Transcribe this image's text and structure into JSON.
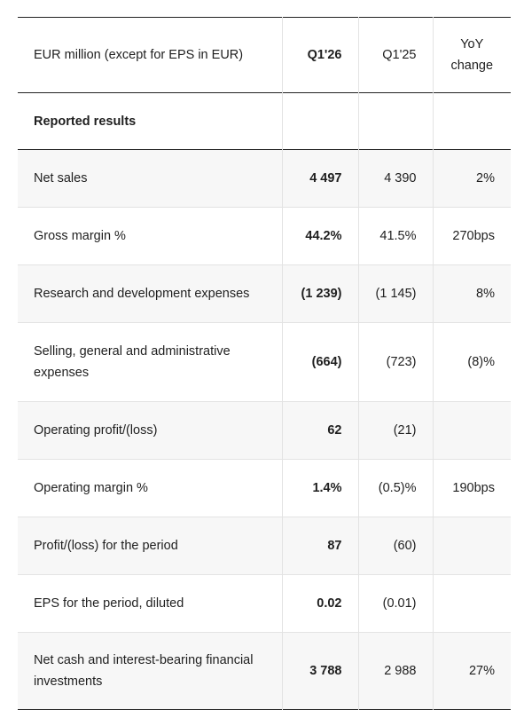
{
  "table": {
    "headers": [
      "EUR million (except for EPS in EUR)",
      "Q1'26",
      "Q1'25",
      "YoY change"
    ],
    "section_title": "Reported results",
    "rows": [
      {
        "label": "Net sales",
        "q126": "4 497",
        "q125": "4 390",
        "yoy": "2%"
      },
      {
        "label": "Gross margin %",
        "q126": "44.2%",
        "q125": "41.5%",
        "yoy": "270bps"
      },
      {
        "label": "Research and development expenses",
        "q126": "(1 239)",
        "q125": "(1 145)",
        "yoy": "8%"
      },
      {
        "label": "Selling, general and administrative expenses",
        "q126": "(664)",
        "q125": "(723)",
        "yoy": "(8)%"
      },
      {
        "label": "Operating profit/(loss)",
        "q126": "62",
        "q125": "(21)",
        "yoy": ""
      },
      {
        "label": "Operating margin %",
        "q126": "1.4%",
        "q125": "(0.5)%",
        "yoy": "190bps"
      },
      {
        "label": "Profit/(loss) for the period",
        "q126": "87",
        "q125": "(60)",
        "yoy": ""
      },
      {
        "label": "EPS for the period, diluted",
        "q126": "0.02",
        "q125": "(0.01)",
        "yoy": ""
      },
      {
        "label": "Net cash and interest-bearing financial investments",
        "q126": "3 788",
        "q125": "2 988",
        "yoy": "27%"
      }
    ]
  }
}
